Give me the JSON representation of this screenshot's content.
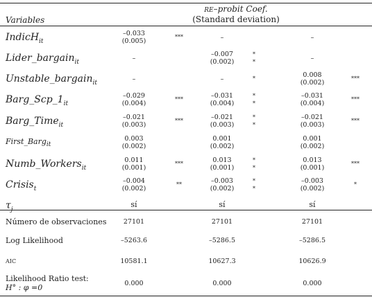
{
  "header": {
    "variables": "Variables",
    "model_title_sc": "re",
    "model_title": "–probit  Coef.",
    "model_subtitle": "(Standard deviation)"
  },
  "rows": [
    {
      "var": "IndicH",
      "sub": "it",
      "c": [
        [
          "–0.033",
          "(0.005)",
          "***"
        ],
        [
          "–",
          "",
          ""
        ],
        [
          "–",
          "",
          ""
        ]
      ]
    },
    {
      "var": "Lider_bargain",
      "sub": "it",
      "c": [
        [
          "–",
          "",
          ""
        ],
        [
          "–0.007",
          "(0.002)",
          "*\n*"
        ],
        [
          "–",
          "",
          ""
        ]
      ]
    },
    {
      "var": "Unstable_bargain",
      "sub": "it",
      "c": [
        [
          "–",
          "",
          ""
        ],
        [
          "–",
          "",
          "*"
        ],
        [
          "0.008",
          "(0.002)",
          "***"
        ]
      ]
    },
    {
      "var": "Barg_Scp_1",
      "sub": "it",
      "c": [
        [
          "–0.029",
          "(0.004)",
          "***"
        ],
        [
          "–0.031",
          "(0.004)",
          "*\n*"
        ],
        [
          "–0.031",
          "(0.004)",
          "***"
        ]
      ]
    },
    {
      "var": "Barg_Time",
      "sub": "it",
      "c": [
        [
          "–0.021",
          "(0.003)",
          "***"
        ],
        [
          "–0.021",
          "(0.003)",
          "*\n*"
        ],
        [
          "–0.021",
          "(0.003)",
          "***"
        ]
      ]
    },
    {
      "var": "First_Barg",
      "sub": "it",
      "small": true,
      "c": [
        [
          "0.003",
          "(0.002)",
          ""
        ],
        [
          "0.001",
          "(0.002)",
          ""
        ],
        [
          "0.001",
          "(0.002)",
          ""
        ]
      ]
    },
    {
      "var": "Numb_Workers",
      "sub": "it",
      "c": [
        [
          "0.011",
          "(0.001)",
          "***"
        ],
        [
          "0.013",
          "(0.001)",
          "*\n*"
        ],
        [
          "0.013",
          "(0.001)",
          "***"
        ]
      ]
    },
    {
      "var": "Crisis",
      "sub": "t",
      "c": [
        [
          "–0.004",
          "(0.002)",
          "**"
        ],
        [
          "–0.003",
          "(0.002)",
          "*\n*"
        ],
        [
          "–0.003",
          "(0.002)",
          "*"
        ]
      ]
    },
    {
      "var": "τ",
      "sub": "j",
      "c": [
        [
          "sí",
          "",
          ""
        ],
        [
          "sí",
          "",
          ""
        ],
        [
          "sí",
          "",
          ""
        ]
      ]
    }
  ],
  "stats": [
    {
      "label": "Número de observaciones",
      "v": [
        "27101",
        "27101",
        "27101"
      ]
    },
    {
      "label": "Log Likelihood",
      "v": [
        "–5263.6",
        "–5286.5",
        "–5286.5"
      ]
    },
    {
      "label": "aic",
      "v": [
        "10581.1",
        "10627.3",
        "10626.9"
      ]
    },
    {
      "label": "Likelihood Ratio test:",
      "label2": "H° : φ =0",
      "v": [
        "0.000",
        "0.000",
        "0.000"
      ]
    }
  ]
}
